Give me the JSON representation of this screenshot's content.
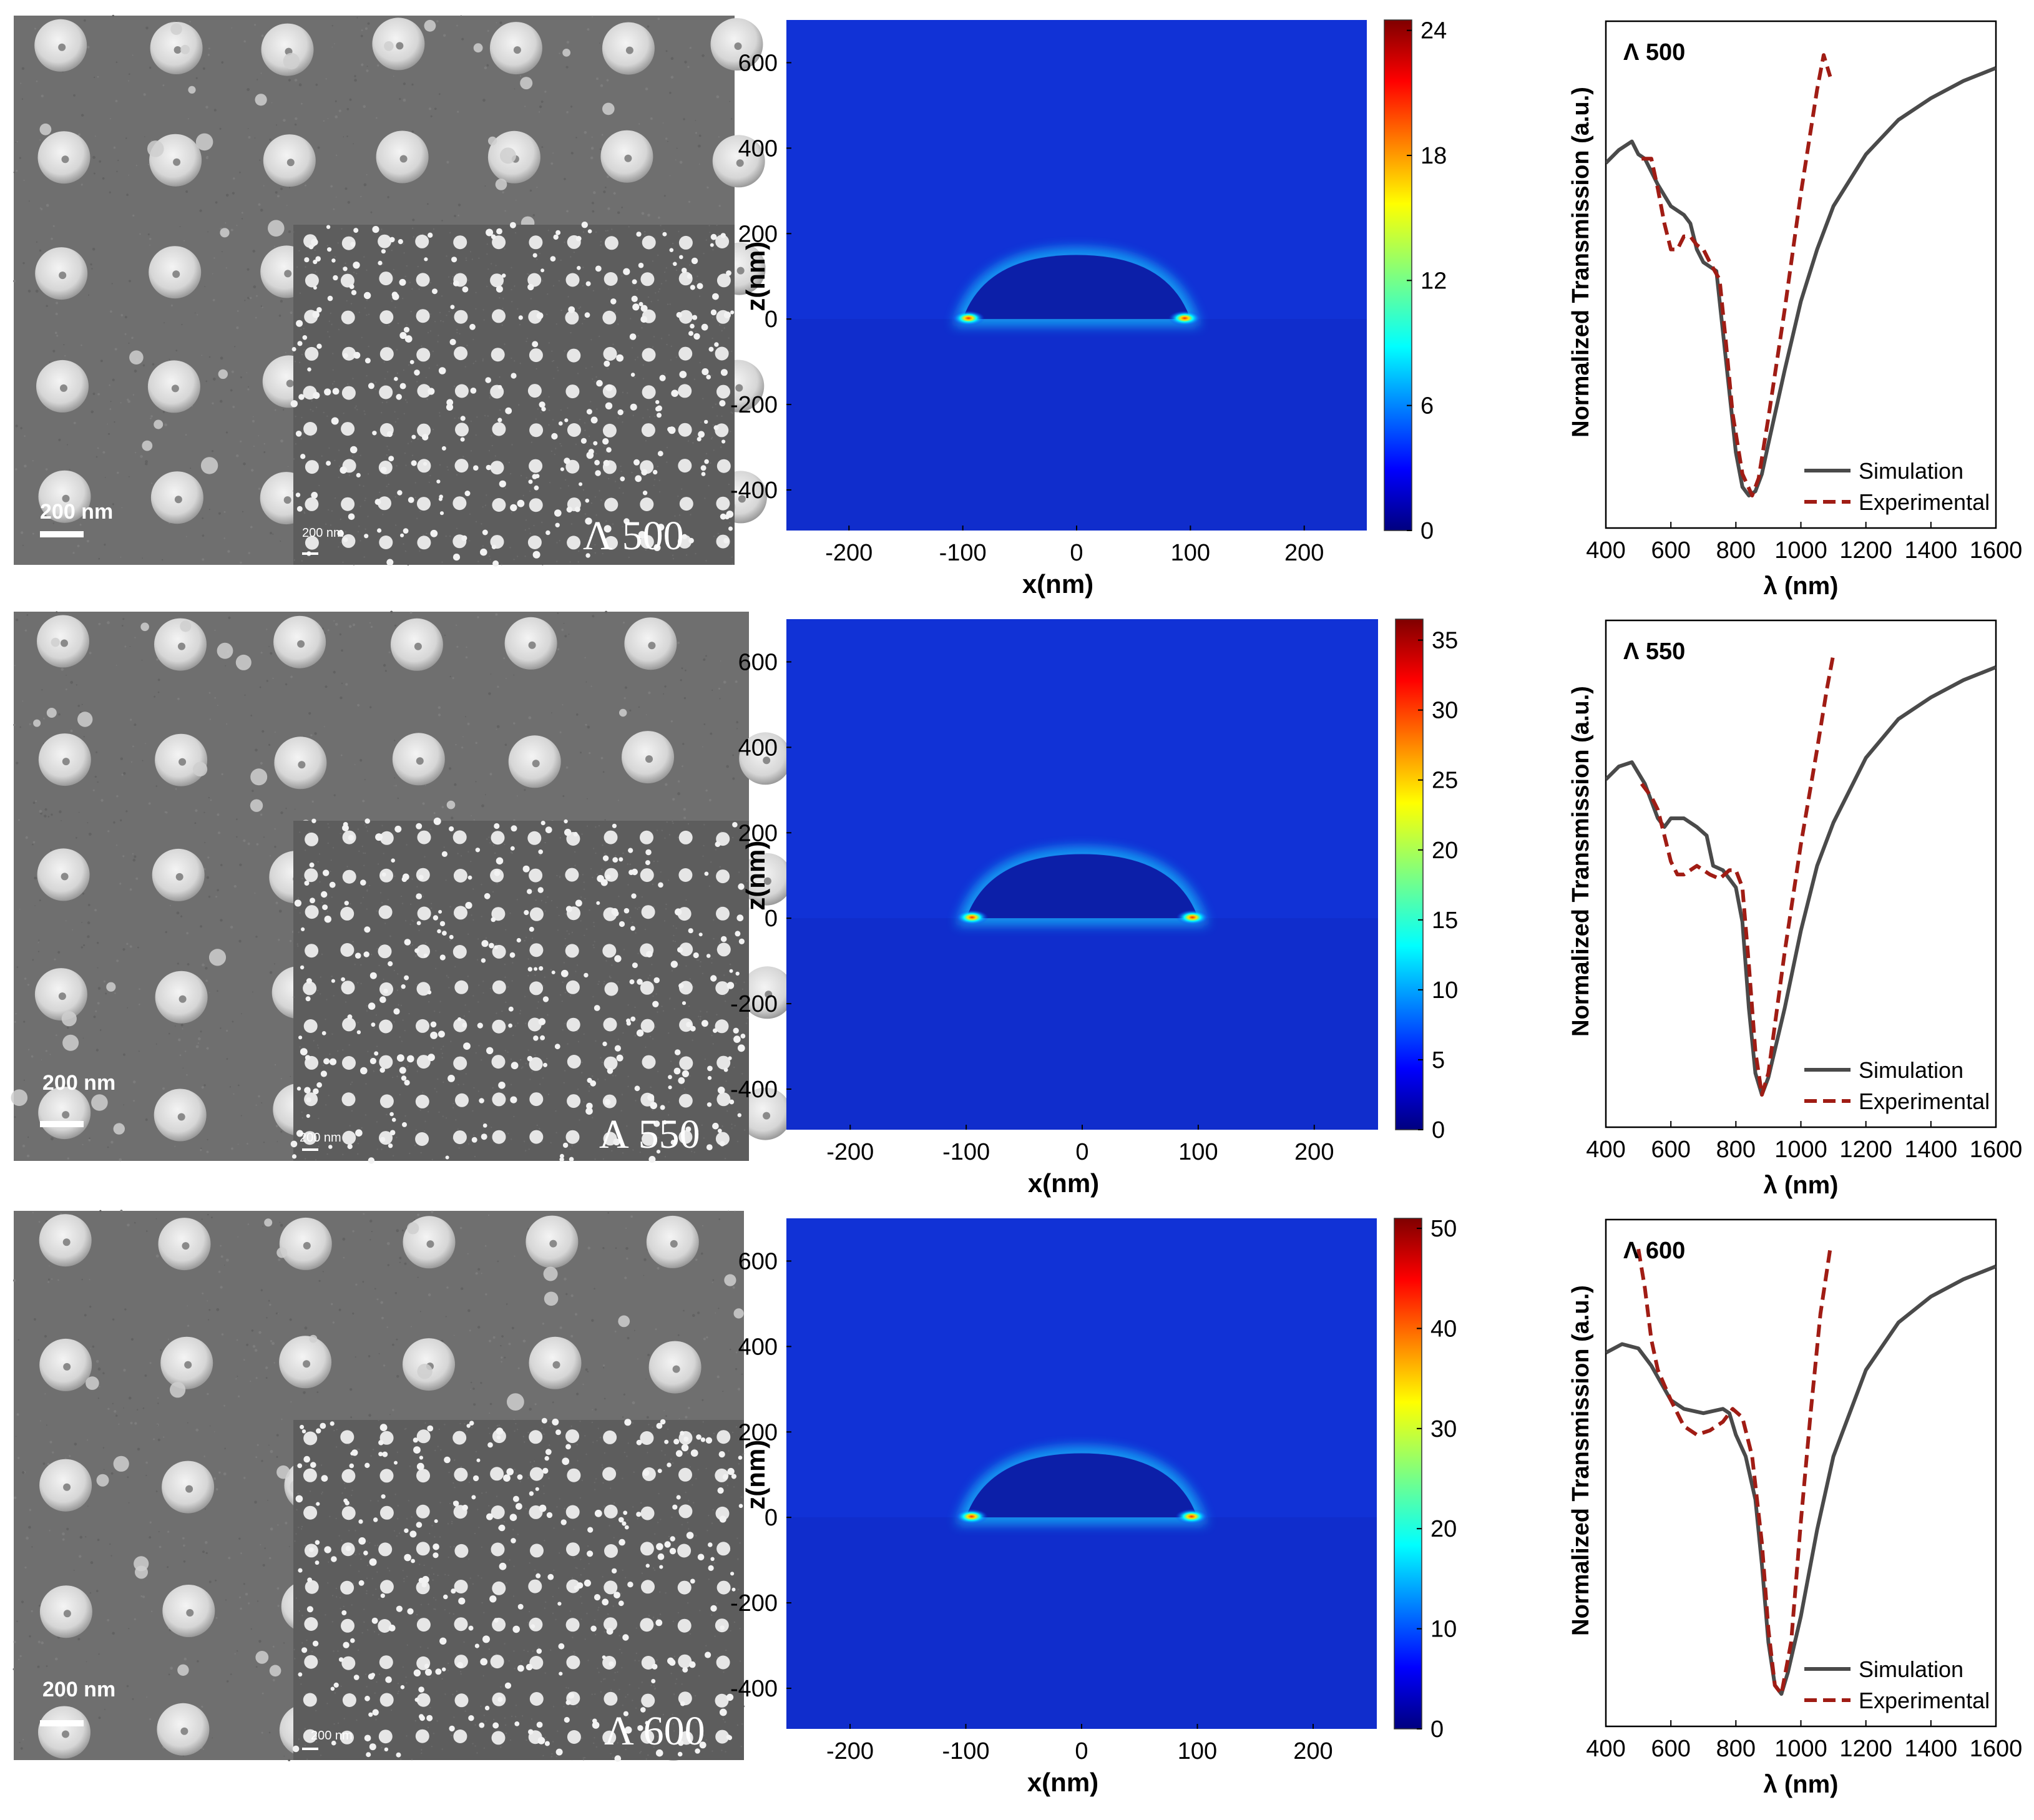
{
  "rows": [
    {
      "id": "p500",
      "sem": {
        "scale_label": "200 nm",
        "inset_scale_label": "200 nm",
        "period_label": "Λ 500"
      },
      "field": {
        "xlabel": "x(nm)",
        "ylabel": "z(nm)",
        "xticks": [
          -200,
          -100,
          0,
          100,
          200
        ],
        "yticks": [
          -400,
          -200,
          0,
          200,
          400,
          600
        ],
        "xlim": [
          -255,
          255
        ],
        "ylim": [
          -495,
          700
        ],
        "colorbar_ticks": [
          0,
          6,
          12,
          18,
          24
        ],
        "colorbar_max": 24.5
      },
      "chart_data": {
        "type": "line",
        "title": "Λ 500",
        "xlabel": "λ (nm)",
        "ylabel": "Normalized Transmission (a.u.)",
        "xlim": [
          400,
          1600
        ],
        "ylim": [
          0,
          1
        ],
        "xticks": [
          400,
          600,
          800,
          1000,
          1200,
          1400,
          1600
        ],
        "legend": "bottom-right",
        "series": [
          {
            "name": "Simulation",
            "color": "#4a4a4a",
            "dash": "solid",
            "x": [
              400,
              440,
              480,
              500,
              520,
              560,
              600,
              640,
              660,
              680,
              700,
              740,
              760,
              780,
              800,
              820,
              840,
              860,
              880,
              900,
              950,
              1000,
              1050,
              1100,
              1200,
              1300,
              1400,
              1500,
              1600
            ],
            "y": [
              0.77,
              0.8,
              0.82,
              0.79,
              0.78,
              0.72,
              0.67,
              0.65,
              0.63,
              0.57,
              0.54,
              0.52,
              0.38,
              0.24,
              0.1,
              0.02,
              0.0,
              0.01,
              0.05,
              0.12,
              0.29,
              0.45,
              0.57,
              0.67,
              0.79,
              0.87,
              0.92,
              0.96,
              0.99
            ]
          },
          {
            "name": "Experimental",
            "color": "#a01c14",
            "dash": "dashed",
            "x": [
              510,
              540,
              560,
              580,
              600,
              620,
              640,
              660,
              680,
              700,
              720,
              750,
              770,
              790,
              820,
              850,
              870,
              900,
              950,
              1000,
              1050,
              1070,
              1090
            ],
            "y": [
              0.78,
              0.78,
              0.71,
              0.63,
              0.57,
              0.57,
              0.6,
              0.6,
              0.58,
              0.57,
              0.54,
              0.5,
              0.35,
              0.19,
              0.05,
              0.0,
              0.04,
              0.18,
              0.43,
              0.7,
              0.94,
              1.02,
              0.97
            ]
          }
        ]
      }
    },
    {
      "id": "p550",
      "sem": {
        "scale_label": "200 nm",
        "inset_scale_label": "200 nm",
        "period_label": "Λ 550"
      },
      "field": {
        "xlabel": "x(nm)",
        "ylabel": "z(nm)",
        "xticks": [
          -200,
          -100,
          0,
          100,
          200
        ],
        "yticks": [
          -400,
          -200,
          0,
          200,
          400,
          600
        ],
        "xlim": [
          -255,
          255
        ],
        "ylim": [
          -495,
          700
        ],
        "colorbar_ticks": [
          0,
          5,
          10,
          15,
          20,
          25,
          30,
          35
        ],
        "colorbar_max": 36.5
      },
      "chart_data": {
        "type": "line",
        "title": "Λ 550",
        "xlabel": "λ (nm)",
        "ylabel": "Normalized Transmission (a.u.)",
        "xlim": [
          400,
          1600
        ],
        "ylim": [
          0,
          1
        ],
        "xticks": [
          400,
          600,
          800,
          1000,
          1200,
          1400,
          1600
        ],
        "legend": "bottom-right",
        "series": [
          {
            "name": "Simulation",
            "color": "#4a4a4a",
            "dash": "solid",
            "x": [
              400,
              440,
              480,
              520,
              560,
              580,
              600,
              640,
              680,
              710,
              730,
              760,
              800,
              820,
              840,
              860,
              880,
              900,
              950,
              1000,
              1050,
              1100,
              1200,
              1300,
              1400,
              1500,
              1600
            ],
            "y": [
              0.73,
              0.76,
              0.77,
              0.72,
              0.64,
              0.62,
              0.64,
              0.64,
              0.62,
              0.6,
              0.53,
              0.52,
              0.48,
              0.4,
              0.2,
              0.05,
              0.0,
              0.04,
              0.2,
              0.38,
              0.53,
              0.63,
              0.78,
              0.87,
              0.92,
              0.96,
              0.99
            ]
          },
          {
            "name": "Experimental",
            "color": "#a01c14",
            "dash": "dashed",
            "x": [
              510,
              540,
              560,
              580,
              600,
              620,
              640,
              680,
              720,
              750,
              780,
              800,
              820,
              840,
              860,
              880,
              900,
              950,
              1000,
              1050,
              1080,
              1100
            ],
            "y": [
              0.72,
              0.69,
              0.66,
              0.6,
              0.54,
              0.51,
              0.51,
              0.53,
              0.51,
              0.5,
              0.52,
              0.52,
              0.48,
              0.3,
              0.1,
              0.0,
              0.05,
              0.33,
              0.58,
              0.8,
              0.94,
              1.02
            ]
          }
        ]
      }
    },
    {
      "id": "p600",
      "sem": {
        "scale_label": "200 nm",
        "inset_scale_label": "200 nm",
        "period_label": "Λ 600"
      },
      "field": {
        "xlabel": "x(nm)",
        "ylabel": "z(nm)",
        "xticks": [
          -200,
          -100,
          0,
          100,
          200
        ],
        "yticks": [
          -400,
          -200,
          0,
          200,
          400,
          600
        ],
        "xlim": [
          -255,
          255
        ],
        "ylim": [
          -495,
          700
        ],
        "colorbar_ticks": [
          0,
          10,
          20,
          30,
          40,
          50
        ],
        "colorbar_max": 51
      },
      "chart_data": {
        "type": "line",
        "title": "Λ 600",
        "xlabel": "λ (nm)",
        "ylabel": "Normalized Transmission (a.u.)",
        "xlim": [
          400,
          1600
        ],
        "ylim": [
          0,
          1
        ],
        "xticks": [
          400,
          600,
          800,
          1000,
          1200,
          1400,
          1600
        ],
        "legend": "bottom-right",
        "series": [
          {
            "name": "Simulation",
            "color": "#4a4a4a",
            "dash": "solid",
            "x": [
              400,
              450,
              500,
              540,
              570,
              600,
              640,
              700,
              760,
              780,
              800,
              830,
              860,
              880,
              900,
              920,
              940,
              960,
              1000,
              1050,
              1100,
              1200,
              1300,
              1400,
              1500,
              1600
            ],
            "y": [
              0.79,
              0.81,
              0.8,
              0.76,
              0.72,
              0.68,
              0.66,
              0.65,
              0.66,
              0.65,
              0.6,
              0.55,
              0.45,
              0.3,
              0.12,
              0.02,
              0.0,
              0.05,
              0.18,
              0.38,
              0.55,
              0.75,
              0.86,
              0.92,
              0.96,
              0.99
            ]
          },
          {
            "name": "Experimental",
            "color": "#a01c14",
            "dash": "dashed",
            "x": [
              500,
              520,
              540,
              560,
              600,
              640,
              680,
              720,
              760,
              790,
              820,
              850,
              880,
              900,
              920,
              940,
              970,
              1000,
              1030,
              1060,
              1090
            ],
            "y": [
              1.03,
              0.94,
              0.82,
              0.75,
              0.68,
              0.62,
              0.6,
              0.61,
              0.63,
              0.66,
              0.64,
              0.55,
              0.35,
              0.15,
              0.02,
              0.0,
              0.12,
              0.4,
              0.65,
              0.88,
              1.03
            ]
          }
        ]
      }
    }
  ]
}
